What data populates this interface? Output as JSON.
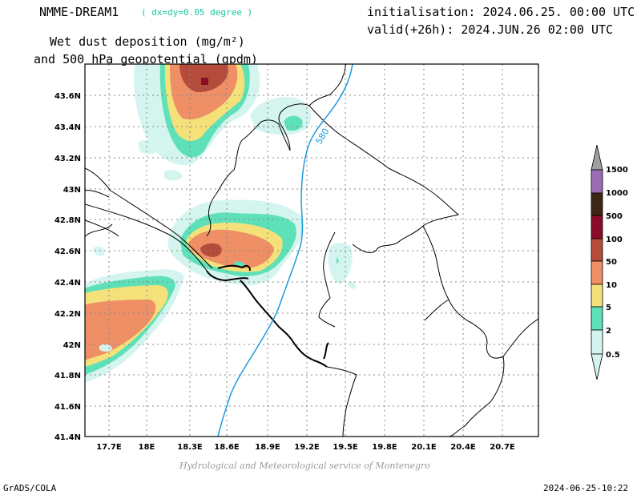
{
  "header": {
    "model": "NMME-DREAM1",
    "resolution": "( dx=dy=0.05 degree )",
    "initialisation": "initialisation: 2024.06.25. 00:00 UTC",
    "valid": "valid(+26h): 2024.JUN.26 02:00 UTC",
    "variable_line1": "Wet dust deposition (mg/m²)",
    "variable_line2": "and 500 hPa geopotential (gpdm)"
  },
  "map": {
    "lon_ticks": [
      "17.7E",
      "18E",
      "18.3E",
      "18.6E",
      "18.9E",
      "19.2E",
      "19.5E",
      "19.8E",
      "20.1E",
      "20.4E",
      "20.7E"
    ],
    "lat_ticks": [
      "43.6N",
      "43.4N",
      "43.2N",
      "43N",
      "42.8N",
      "42.6N",
      "42.4N",
      "42.2N",
      "42N",
      "41.8N",
      "41.6N",
      "41.4N"
    ],
    "contour_label": "580",
    "colors": {
      "contour": "#1e9be0",
      "coast": "#000000",
      "grid": "#888888"
    }
  },
  "legend": {
    "levels": [
      {
        "label": "0.5",
        "color": "#d4f5ef"
      },
      {
        "label": "2",
        "color": "#5ee0b8"
      },
      {
        "label": "5",
        "color": "#f5e17a"
      },
      {
        "label": "10",
        "color": "#ee8f66"
      },
      {
        "label": "50",
        "color": "#b44c3c"
      },
      {
        "label": "100",
        "color": "#8a0c2a"
      },
      {
        "label": "500",
        "color": "#3d2615"
      },
      {
        "label": "1000",
        "color": "#9a6cb4"
      },
      {
        "label": "1500",
        "color": "#a0a0a0"
      }
    ]
  },
  "footer": {
    "credit": "Hydrological and Meteorological service of Montenegro",
    "software": "GrADS/COLA",
    "timestamp": "2024-06-25-10:22"
  }
}
